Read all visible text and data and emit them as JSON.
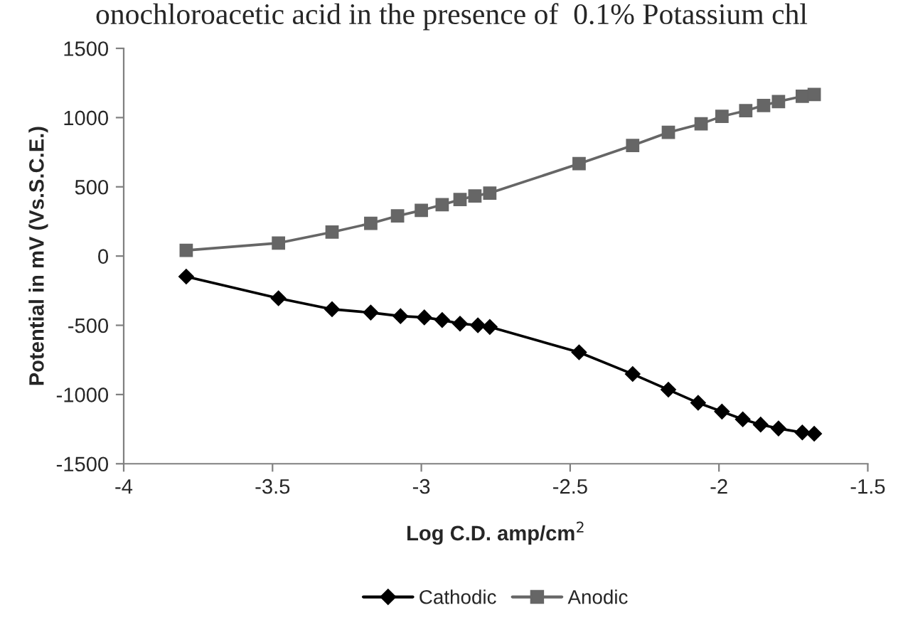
{
  "chart_data": {
    "type": "line",
    "title": "onochloroacetic acid in the presence of  0.1% Potassium chl",
    "xlabel": "Log C.D. amp/cm$^{2}$",
    "ylabel": "Potential in mV (Vs.S.C.E.)",
    "series": [
      {
        "name": "Cathodic",
        "color": "#000000",
        "marker": "diamond",
        "x": [
          -3.79,
          -3.48,
          -3.3,
          -3.17,
          -3.07,
          -2.99,
          -2.93,
          -2.87,
          -2.81,
          -2.77,
          -2.47,
          -2.29,
          -2.17,
          -2.07,
          -1.99,
          -1.92,
          -1.86,
          -1.8,
          -1.72,
          -1.68
        ],
        "values": [
          -148,
          -305,
          -384,
          -408,
          -434,
          -443,
          -462,
          -488,
          -500,
          -512,
          -695,
          -852,
          -965,
          -1060,
          -1123,
          -1179,
          -1217,
          -1245,
          -1274,
          -1283
        ]
      },
      {
        "name": "Anodic",
        "color": "#666666",
        "marker": "square",
        "x": [
          -3.79,
          -3.48,
          -3.3,
          -3.17,
          -3.08,
          -3.0,
          -2.93,
          -2.87,
          -2.82,
          -2.77,
          -2.47,
          -2.29,
          -2.17,
          -2.06,
          -1.99,
          -1.91,
          -1.85,
          -1.8,
          -1.72,
          -1.68
        ],
        "values": [
          41,
          94,
          173,
          236,
          290,
          330,
          371,
          408,
          434,
          455,
          667,
          799,
          893,
          955,
          1009,
          1050,
          1088,
          1116,
          1154,
          1167
        ]
      }
    ],
    "xlim": [
      -4,
      -1.5
    ],
    "xticks": [
      -4,
      -3.5,
      -3,
      -2.5,
      -2,
      -1.5
    ],
    "ylim": [
      -1500,
      1500
    ],
    "yticks": [
      -1500,
      -1000,
      -500,
      0,
      500,
      1000,
      1500
    ],
    "grid": false,
    "legend": "bottom",
    "line_style": "solid"
  }
}
